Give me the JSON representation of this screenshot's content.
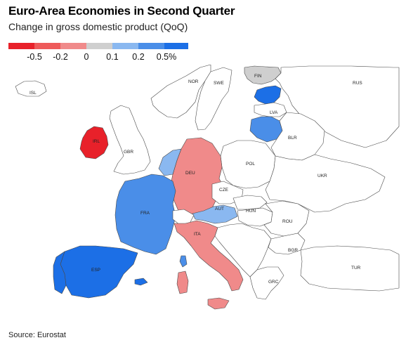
{
  "header": {
    "title": "Euro-Area Economies in Second Quarter",
    "subtitle": "Change in gross domestic product (QoQ)"
  },
  "legend": {
    "bins": [
      {
        "color": "#e8212a"
      },
      {
        "color": "#ee5a5a"
      },
      {
        "color": "#f08a8a"
      },
      {
        "color": "#cfcfcf"
      },
      {
        "color": "#8ab8f0"
      },
      {
        "color": "#4a8ee8"
      },
      {
        "color": "#1c6fe6"
      }
    ],
    "labels": [
      "-0.5",
      "-0.2",
      "0",
      "0.1",
      "0.2",
      "0.5%"
    ]
  },
  "countries": {
    "ISL": "ISL",
    "NOR": "NOR",
    "SWE": "SWE",
    "FIN": "FIN",
    "RUS": "RUS",
    "LVA": "LVA",
    "IRL": "IRL",
    "GBR": "GBR",
    "BLR": "BLR",
    "DEU": "DEU",
    "POL": "POL",
    "UKR": "UKR",
    "CZE": "CZE",
    "FRA": "FRA",
    "AUT": "AUT",
    "HUN": "HUN",
    "ROU": "ROU",
    "ITA": "ITA",
    "BGR": "BGR",
    "ESP": "ESP",
    "TUR": "TUR",
    "GRC": "GRC"
  },
  "colors": {
    "strong_negative": "#e8212a",
    "moderate_negative": "#f08a8a",
    "slight_positive": "#8ab8f0",
    "moderate_positive": "#4a8ee8",
    "strong_positive": "#1c6fe6",
    "no_data_neighbor": "#ffffff",
    "neutral": "#cfcfcf",
    "border": "#4a4a4a"
  },
  "footer": {
    "source": "Source: Eurostat"
  }
}
